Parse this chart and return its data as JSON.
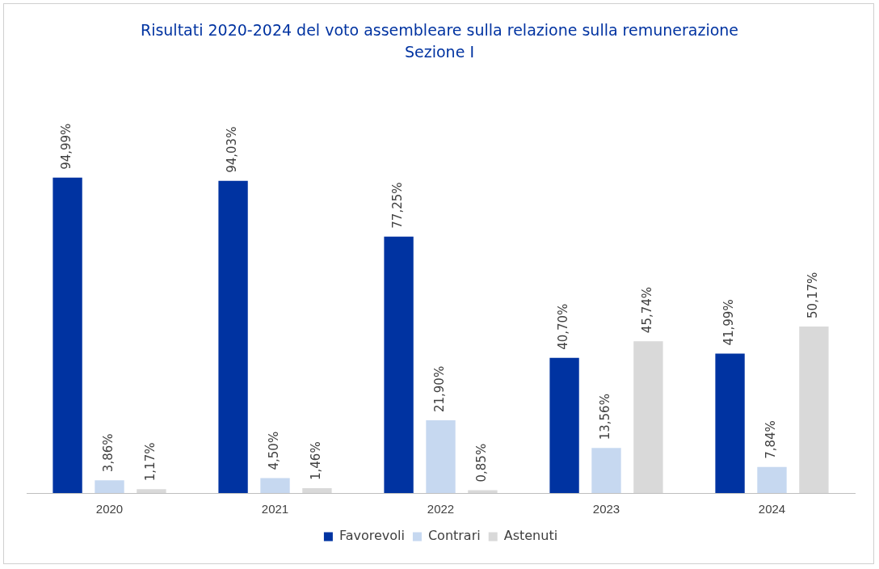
{
  "chart_data": {
    "type": "bar",
    "title": "Risultati 2020-2024 del voto assembleare sulla relazione sulla remunerazione",
    "subtitle": "Sezione I",
    "categories": [
      "2020",
      "2021",
      "2022",
      "2023",
      "2024"
    ],
    "series": [
      {
        "name": "Favorevoli",
        "color": "#0033a1",
        "values": [
          94.99,
          94.03,
          77.25,
          40.7,
          41.99
        ],
        "value_labels": [
          "94,99%",
          "94,03%",
          "77,25%",
          "40,70%",
          "41,99%"
        ]
      },
      {
        "name": "Contrari",
        "color": "#c6d8f0",
        "values": [
          3.86,
          4.5,
          21.9,
          13.56,
          7.84
        ],
        "value_labels": [
          "3,86%",
          "4,50%",
          "21,90%",
          "13,56%",
          "7,84%"
        ]
      },
      {
        "name": "Astenuti",
        "color": "#d9d9d9",
        "values": [
          1.17,
          1.46,
          0.85,
          45.74,
          50.17
        ],
        "value_labels": [
          "1,17%",
          "1,46%",
          "0,85%",
          "45,74%",
          "50,17%"
        ]
      }
    ],
    "legend": "bottom",
    "grid": false
  }
}
